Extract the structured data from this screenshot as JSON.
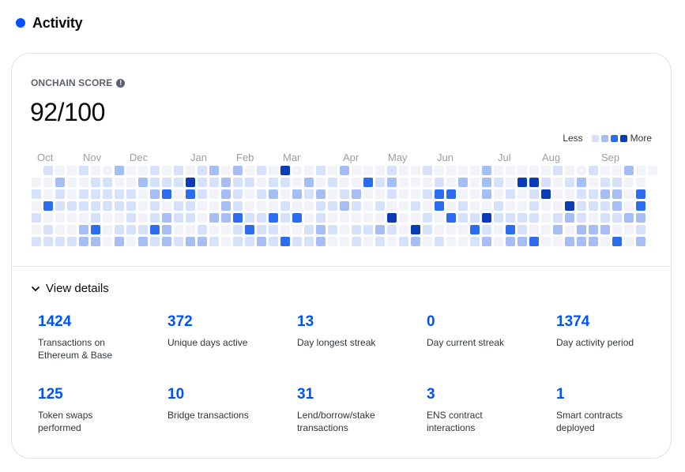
{
  "section": {
    "title": "Activity"
  },
  "score": {
    "label": "ONCHAIN SCORE",
    "value": "92/100"
  },
  "legend": {
    "less": "Less",
    "more": "More"
  },
  "colors": {
    "accent": "#0052ff",
    "levels": [
      "#f1f3f8",
      "#d6e1fb",
      "#a7bef5",
      "#2b6cf0",
      "#0a3cb8"
    ]
  },
  "months": [
    "Oct",
    "Nov",
    "Dec",
    "Jan",
    "Feb",
    "Mar",
    "Apr",
    "May",
    "Jun",
    "Jul",
    "Aug",
    "Sep"
  ],
  "heatmap_rows": [
    ".1001002001010120201040010200010010000200000100100200",
    "0020011002111411211011020100312000102021044101201100",
    "1010111110230310210120212012001001330020101400112203",
    "0311111110101100210001001121010010301001001004111203",
    "1000010010121102231131301000004001031141111012101122",
    "0100230111320010013110012101121041000310310020222001",
    "1111220202121221011213112001010120100120223002220302"
  ],
  "details": {
    "toggle_label": "View details",
    "stats": [
      {
        "value": "1424",
        "label": "Transactions on Ethereum & Base"
      },
      {
        "value": "372",
        "label": "Unique days active"
      },
      {
        "value": "13",
        "label": "Day longest streak"
      },
      {
        "value": "0",
        "label": "Day current streak"
      },
      {
        "value": "1374",
        "label": "Day activity period"
      },
      {
        "value": "125",
        "label": "Token swaps performed"
      },
      {
        "value": "10",
        "label": "Bridge transactions"
      },
      {
        "value": "31",
        "label": "Lend/borrow/stake transactions"
      },
      {
        "value": "3",
        "label": "ENS contract interactions"
      },
      {
        "value": "1",
        "label": "Smart contracts deployed"
      }
    ]
  }
}
